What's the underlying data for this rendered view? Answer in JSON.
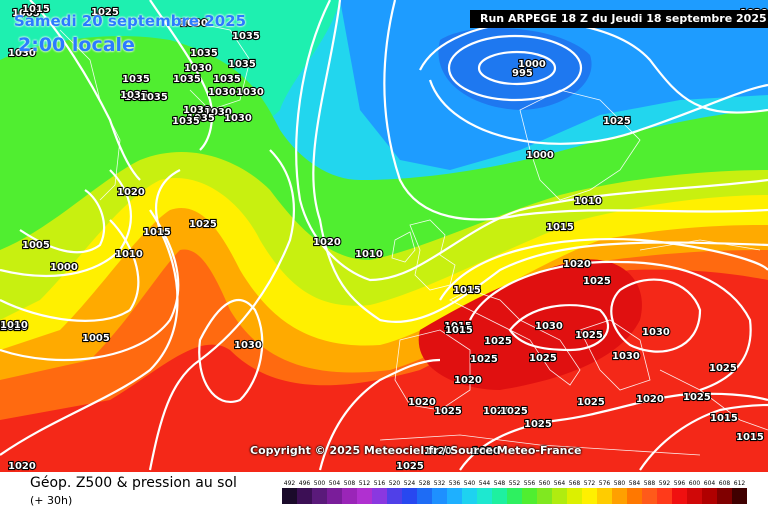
{
  "header": {
    "date_line": "Samedi 20 septembre 2025",
    "time_line": "2:00 locale",
    "run_info": "Run ARPEGE 18 Z du Jeudi 18 septembre 2025"
  },
  "copyright": "Copyright © 2025 Meteociel.fr / Source Meteo-France",
  "legend": {
    "title": "Géop. Z500 & pression au sol",
    "subtitle": "(+ 30h)",
    "scale": [
      {
        "label": "492",
        "color": "#1a0a2a"
      },
      {
        "label": "496",
        "color": "#3c0f55"
      },
      {
        "label": "500",
        "color": "#5a1a7a"
      },
      {
        "label": "504",
        "color": "#7a1d9a"
      },
      {
        "label": "508",
        "color": "#9a25b8"
      },
      {
        "label": "512",
        "color": "#b030d0"
      },
      {
        "label": "516",
        "color": "#8a38e0"
      },
      {
        "label": "520",
        "color": "#5040e8"
      },
      {
        "label": "524",
        "color": "#2848f0"
      },
      {
        "label": "528",
        "color": "#1e6cf5"
      },
      {
        "label": "532",
        "color": "#1e90ff"
      },
      {
        "label": "536",
        "color": "#1eb0ff"
      },
      {
        "label": "540",
        "color": "#1ed2f0"
      },
      {
        "label": "544",
        "color": "#1ee8d0"
      },
      {
        "label": "548",
        "color": "#1ef0a0"
      },
      {
        "label": "552",
        "color": "#2ef060"
      },
      {
        "label": "556",
        "color": "#50ee30"
      },
      {
        "label": "560",
        "color": "#80e820"
      },
      {
        "label": "564",
        "color": "#b0ec10"
      },
      {
        "label": "568",
        "color": "#dcf000"
      },
      {
        "label": "572",
        "color": "#fff000"
      },
      {
        "label": "576",
        "color": "#ffcc00"
      },
      {
        "label": "580",
        "color": "#ffa000"
      },
      {
        "label": "584",
        "color": "#ff7800"
      },
      {
        "label": "588",
        "color": "#ff5a1a"
      },
      {
        "label": "592",
        "color": "#ff3a1a"
      },
      {
        "label": "596",
        "color": "#f01010"
      },
      {
        "label": "600",
        "color": "#d00808"
      },
      {
        "label": "604",
        "color": "#b00000"
      },
      {
        "label": "608",
        "color": "#800000"
      },
      {
        "label": "612",
        "color": "#400000"
      }
    ]
  },
  "isobar_labels": [
    {
      "text": "1025"
    },
    {
      "text": "1030"
    },
    {
      "text": "1035"
    },
    {
      "text": "1030"
    },
    {
      "text": "1035"
    },
    {
      "text": "1035"
    },
    {
      "text": "1035"
    },
    {
      "text": "1030"
    },
    {
      "text": "1035"
    },
    {
      "text": "1035"
    },
    {
      "text": "1030"
    },
    {
      "text": "1035"
    },
    {
      "text": "1030"
    },
    {
      "text": "1030"
    },
    {
      "text": "1035"
    },
    {
      "text": "1035"
    },
    {
      "text": "1035"
    },
    {
      "text": "1035"
    },
    {
      "text": "1030"
    },
    {
      "text": "1030"
    },
    {
      "text": "1020"
    },
    {
      "text": "1000"
    },
    {
      "text": "995"
    },
    {
      "text": "1005"
    },
    {
      "text": "1000"
    },
    {
      "text": "1010"
    },
    {
      "text": "1020"
    },
    {
      "text": "1015"
    },
    {
      "text": "1025"
    },
    {
      "text": "1005"
    },
    {
      "text": "1010"
    },
    {
      "text": "1000"
    },
    {
      "text": "1020"
    },
    {
      "text": "1010"
    },
    {
      "text": "1015"
    },
    {
      "text": "1020"
    },
    {
      "text": "1025"
    },
    {
      "text": "1010"
    },
    {
      "text": "1005"
    },
    {
      "text": "1030"
    },
    {
      "text": "1015"
    },
    {
      "text": "1015"
    },
    {
      "text": "1025"
    },
    {
      "text": "1030"
    },
    {
      "text": "1025"
    },
    {
      "text": "1030"
    },
    {
      "text": "1025"
    },
    {
      "text": "1025"
    },
    {
      "text": "1030"
    },
    {
      "text": "1025"
    },
    {
      "text": "1025"
    },
    {
      "text": "1020"
    },
    {
      "text": "1015"
    },
    {
      "text": "1015"
    },
    {
      "text": "1020"
    },
    {
      "text": "1025"
    },
    {
      "text": "1020"
    },
    {
      "text": "1020"
    },
    {
      "text": "1025"
    },
    {
      "text": "1025"
    },
    {
      "text": "1025"
    },
    {
      "text": "1025"
    },
    {
      "text": "1020"
    },
    {
      "text": "1020"
    },
    {
      "text": "1020"
    },
    {
      "text": "1020"
    },
    {
      "text": "1015"
    },
    {
      "text": "1015"
    },
    {
      "text": "1025"
    }
  ]
}
